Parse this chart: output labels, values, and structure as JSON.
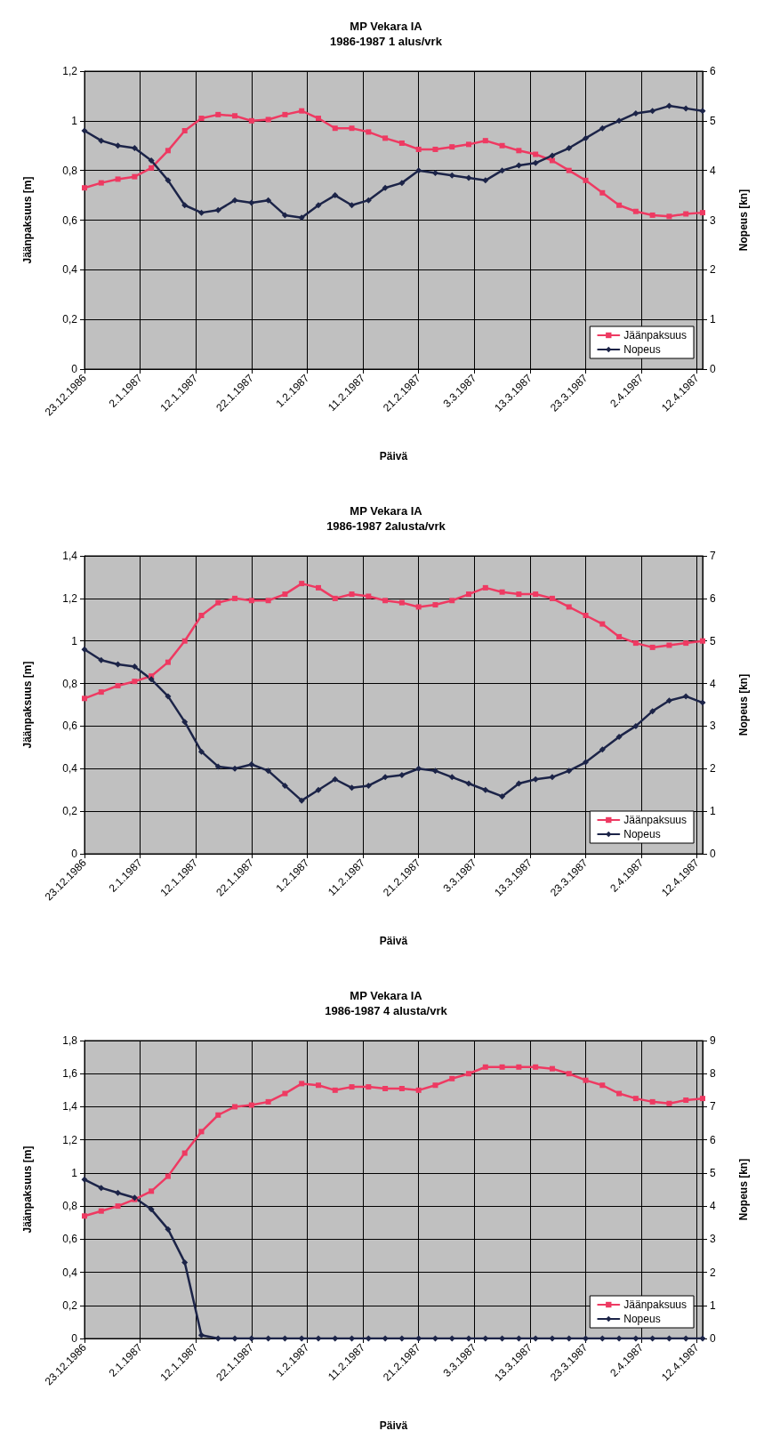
{
  "chart_data": [
    {
      "type": "line",
      "title": "MP Vekara IA",
      "subtitle": "1986-1987 1 alus/vrk",
      "xlabel": "Päivä",
      "ylabel": "Jäänpaksuus [m]",
      "y2label": "Nopeus [kn]",
      "x": [
        "1986-12-23",
        "1986-12-26",
        "1986-12-29",
        "1987-01-01",
        "1987-01-04",
        "1987-01-07",
        "1987-01-10",
        "1987-01-13",
        "1987-01-16",
        "1987-01-19",
        "1987-01-22",
        "1987-01-25",
        "1987-01-28",
        "1987-01-31",
        "1987-02-03",
        "1987-02-06",
        "1987-02-09",
        "1987-02-12",
        "1987-02-15",
        "1987-02-18",
        "1987-02-21",
        "1987-02-24",
        "1987-02-27",
        "1987-03-02",
        "1987-03-05",
        "1987-03-08",
        "1987-03-11",
        "1987-03-14",
        "1987-03-17",
        "1987-03-20",
        "1987-03-23",
        "1987-03-26",
        "1987-03-29",
        "1987-04-01",
        "1987-04-04",
        "1987-04-07",
        "1987-04-10",
        "1987-04-13"
      ],
      "series": [
        {
          "name": "Jäänpaksuus",
          "color": "#ee3a62",
          "marker": "square",
          "values": [
            0.73,
            0.75,
            0.765,
            0.775,
            0.81,
            0.88,
            0.96,
            1.01,
            1.025,
            1.02,
            1.0,
            1.005,
            1.025,
            1.04,
            1.01,
            0.97,
            0.97,
            0.955,
            0.93,
            0.91,
            0.885,
            0.885,
            0.895,
            0.905,
            0.92,
            0.9,
            0.88,
            0.865,
            0.84,
            0.8,
            0.76,
            0.71,
            0.66,
            0.635,
            0.62,
            0.615,
            0.625,
            0.63
          ]
        },
        {
          "name": "Nopeus",
          "color": "#1c2448",
          "marker": "diamond",
          "axis": "y2",
          "values": [
            4.8,
            4.6,
            4.5,
            4.45,
            4.2,
            3.8,
            3.3,
            3.15,
            3.2,
            3.4,
            3.35,
            3.4,
            3.1,
            3.05,
            3.3,
            3.5,
            3.3,
            3.4,
            3.65,
            3.75,
            4.0,
            3.95,
            3.9,
            3.85,
            3.8,
            4.0,
            4.1,
            4.15,
            4.3,
            4.45,
            4.65,
            4.85,
            5.0,
            5.15,
            5.2,
            5.3,
            5.25,
            5.2
          ]
        }
      ],
      "xlim": [
        "1986-12-23",
        "1987-04-13"
      ],
      "xticks": [
        {
          "value": "1986-12-23",
          "label": "23.12.1986"
        },
        {
          "value": "1987-01-02",
          "label": "2.1.1987"
        },
        {
          "value": "1987-01-12",
          "label": "12.1.1987"
        },
        {
          "value": "1987-01-22",
          "label": "22.1.1987"
        },
        {
          "value": "1987-02-01",
          "label": "1.2.1987"
        },
        {
          "value": "1987-02-11",
          "label": "11.2.1987"
        },
        {
          "value": "1987-02-21",
          "label": "21.2.1987"
        },
        {
          "value": "1987-03-03",
          "label": "3.3.1987"
        },
        {
          "value": "1987-03-13",
          "label": "13.3.1987"
        },
        {
          "value": "1987-03-23",
          "label": "23.3.1987"
        },
        {
          "value": "1987-04-02",
          "label": "2.4.1987"
        },
        {
          "value": "1987-04-12",
          "label": "12.4.1987"
        }
      ],
      "ylim": [
        0,
        1.2
      ],
      "yticks": [
        {
          "value": 0,
          "label": "0"
        },
        {
          "value": 0.2,
          "label": "0,2"
        },
        {
          "value": 0.4,
          "label": "0,4"
        },
        {
          "value": 0.6,
          "label": "0,6"
        },
        {
          "value": 0.8,
          "label": "0,8"
        },
        {
          "value": 1,
          "label": "1"
        },
        {
          "value": 1.2,
          "label": "1,2"
        }
      ],
      "y2lim": [
        0,
        6
      ],
      "y2ticks": [
        0,
        1,
        2,
        3,
        4,
        5,
        6
      ],
      "grid": true,
      "legend": "bottom right",
      "line_style": "solid"
    },
    {
      "type": "line",
      "title": "MP Vekara IA",
      "subtitle": "1986-1987 2alusta/vrk",
      "xlabel": "Päivä",
      "ylabel": "Jäänpaksuus [m]",
      "y2label": "Nopeus [kn]",
      "x": [
        "1986-12-23",
        "1986-12-26",
        "1986-12-29",
        "1987-01-01",
        "1987-01-04",
        "1987-01-07",
        "1987-01-10",
        "1987-01-13",
        "1987-01-16",
        "1987-01-19",
        "1987-01-22",
        "1987-01-25",
        "1987-01-28",
        "1987-01-31",
        "1987-02-03",
        "1987-02-06",
        "1987-02-09",
        "1987-02-12",
        "1987-02-15",
        "1987-02-18",
        "1987-02-21",
        "1987-02-24",
        "1987-02-27",
        "1987-03-02",
        "1987-03-05",
        "1987-03-08",
        "1987-03-11",
        "1987-03-14",
        "1987-03-17",
        "1987-03-20",
        "1987-03-23",
        "1987-03-26",
        "1987-03-29",
        "1987-04-01",
        "1987-04-04",
        "1987-04-07",
        "1987-04-10",
        "1987-04-13"
      ],
      "series": [
        {
          "name": "Jäänpaksuus",
          "color": "#ee3a62",
          "marker": "square",
          "values": [
            0.73,
            0.76,
            0.79,
            0.81,
            0.835,
            0.9,
            1.0,
            1.12,
            1.18,
            1.2,
            1.19,
            1.19,
            1.22,
            1.27,
            1.25,
            1.2,
            1.22,
            1.21,
            1.19,
            1.18,
            1.16,
            1.17,
            1.19,
            1.22,
            1.25,
            1.23,
            1.22,
            1.22,
            1.2,
            1.16,
            1.12,
            1.08,
            1.02,
            0.99,
            0.97,
            0.98,
            0.99,
            1.0
          ]
        },
        {
          "name": "Nopeus",
          "color": "#1c2448",
          "marker": "diamond",
          "axis": "y2",
          "values": [
            4.8,
            4.55,
            4.45,
            4.4,
            4.1,
            3.7,
            3.1,
            2.4,
            2.05,
            2.0,
            2.1,
            1.95,
            1.6,
            1.25,
            1.5,
            1.75,
            1.55,
            1.6,
            1.8,
            1.85,
            2.0,
            1.95,
            1.8,
            1.65,
            1.5,
            1.35,
            1.65,
            1.75,
            1.8,
            1.95,
            2.15,
            2.45,
            2.75,
            3.0,
            3.35,
            3.6,
            3.7,
            3.55
          ]
        }
      ],
      "xlim": [
        "1986-12-23",
        "1987-04-13"
      ],
      "xticks": [
        {
          "value": "1986-12-23",
          "label": "23.12.1986"
        },
        {
          "value": "1987-01-02",
          "label": "2.1.1987"
        },
        {
          "value": "1987-01-12",
          "label": "12.1.1987"
        },
        {
          "value": "1987-01-22",
          "label": "22.1.1987"
        },
        {
          "value": "1987-02-01",
          "label": "1.2.1987"
        },
        {
          "value": "1987-02-11",
          "label": "11.2.1987"
        },
        {
          "value": "1987-02-21",
          "label": "21.2.1987"
        },
        {
          "value": "1987-03-03",
          "label": "3.3.1987"
        },
        {
          "value": "1987-03-13",
          "label": "13.3.1987"
        },
        {
          "value": "1987-03-23",
          "label": "23.3.1987"
        },
        {
          "value": "1987-04-02",
          "label": "2.4.1987"
        },
        {
          "value": "1987-04-12",
          "label": "12.4.1987"
        }
      ],
      "ylim": [
        0,
        1.4
      ],
      "yticks": [
        {
          "value": 0,
          "label": "0"
        },
        {
          "value": 0.2,
          "label": "0,2"
        },
        {
          "value": 0.4,
          "label": "0,4"
        },
        {
          "value": 0.6,
          "label": "0,6"
        },
        {
          "value": 0.8,
          "label": "0,8"
        },
        {
          "value": 1,
          "label": "1"
        },
        {
          "value": 1.2,
          "label": "1,2"
        },
        {
          "value": 1.4,
          "label": "1,4"
        }
      ],
      "y2lim": [
        0,
        7
      ],
      "y2ticks": [
        0,
        1,
        2,
        3,
        4,
        5,
        6,
        7
      ],
      "grid": true,
      "legend": "bottom right",
      "line_style": "solid"
    },
    {
      "type": "line",
      "title": "MP Vekara IA",
      "subtitle": "1986-1987 4 alusta/vrk",
      "xlabel": "Päivä",
      "ylabel": "Jäänpaksuus [m]",
      "y2label": "Nopeus [kn]",
      "x": [
        "1986-12-23",
        "1986-12-26",
        "1986-12-29",
        "1987-01-01",
        "1987-01-04",
        "1987-01-07",
        "1987-01-10",
        "1987-01-13",
        "1987-01-16",
        "1987-01-19",
        "1987-01-22",
        "1987-01-25",
        "1987-01-28",
        "1987-01-31",
        "1987-02-03",
        "1987-02-06",
        "1987-02-09",
        "1987-02-12",
        "1987-02-15",
        "1987-02-18",
        "1987-02-21",
        "1987-02-24",
        "1987-02-27",
        "1987-03-02",
        "1987-03-05",
        "1987-03-08",
        "1987-03-11",
        "1987-03-14",
        "1987-03-17",
        "1987-03-20",
        "1987-03-23",
        "1987-03-26",
        "1987-03-29",
        "1987-04-01",
        "1987-04-04",
        "1987-04-07",
        "1987-04-10",
        "1987-04-13"
      ],
      "series": [
        {
          "name": "Jäänpaksuus",
          "color": "#ee3a62",
          "marker": "square",
          "values": [
            0.74,
            0.77,
            0.8,
            0.84,
            0.89,
            0.98,
            1.12,
            1.25,
            1.35,
            1.4,
            1.41,
            1.43,
            1.48,
            1.54,
            1.53,
            1.5,
            1.52,
            1.52,
            1.51,
            1.51,
            1.5,
            1.53,
            1.57,
            1.6,
            1.64,
            1.64,
            1.64,
            1.64,
            1.63,
            1.6,
            1.56,
            1.53,
            1.48,
            1.45,
            1.43,
            1.42,
            1.44,
            1.45
          ]
        },
        {
          "name": "Nopeus",
          "color": "#1c2448",
          "marker": "diamond",
          "axis": "y2",
          "values": [
            4.8,
            4.55,
            4.4,
            4.25,
            3.9,
            3.3,
            2.3,
            0.1,
            0,
            0,
            0,
            0,
            0,
            0,
            0,
            0,
            0,
            0,
            0,
            0,
            0,
            0,
            0,
            0,
            0,
            0,
            0,
            0,
            0,
            0,
            0,
            0,
            0,
            0,
            0,
            0,
            0,
            0
          ]
        }
      ],
      "xlim": [
        "1986-12-23",
        "1987-04-13"
      ],
      "xticks": [
        {
          "value": "1986-12-23",
          "label": "23.12.1986"
        },
        {
          "value": "1987-01-02",
          "label": "2.1.1987"
        },
        {
          "value": "1987-01-12",
          "label": "12.1.1987"
        },
        {
          "value": "1987-01-22",
          "label": "22.1.1987"
        },
        {
          "value": "1987-02-01",
          "label": "1.2.1987"
        },
        {
          "value": "1987-02-11",
          "label": "11.2.1987"
        },
        {
          "value": "1987-02-21",
          "label": "21.2.1987"
        },
        {
          "value": "1987-03-03",
          "label": "3.3.1987"
        },
        {
          "value": "1987-03-13",
          "label": "13.3.1987"
        },
        {
          "value": "1987-03-23",
          "label": "23.3.1987"
        },
        {
          "value": "1987-04-02",
          "label": "2.4.1987"
        },
        {
          "value": "1987-04-12",
          "label": "12.4.1987"
        }
      ],
      "ylim": [
        0,
        1.8
      ],
      "yticks": [
        {
          "value": 0,
          "label": "0"
        },
        {
          "value": 0.2,
          "label": "0,2"
        },
        {
          "value": 0.4,
          "label": "0,4"
        },
        {
          "value": 0.6,
          "label": "0,6"
        },
        {
          "value": 0.8,
          "label": "0,8"
        },
        {
          "value": 1,
          "label": "1"
        },
        {
          "value": 1.2,
          "label": "1,2"
        },
        {
          "value": 1.4,
          "label": "1,4"
        },
        {
          "value": 1.6,
          "label": "1,6"
        },
        {
          "value": 1.8,
          "label": "1,8"
        }
      ],
      "y2lim": [
        0,
        9
      ],
      "y2ticks": [
        0,
        1,
        2,
        3,
        4,
        5,
        6,
        7,
        8,
        9
      ],
      "grid": true,
      "legend": "bottom right",
      "line_style": "solid"
    }
  ]
}
